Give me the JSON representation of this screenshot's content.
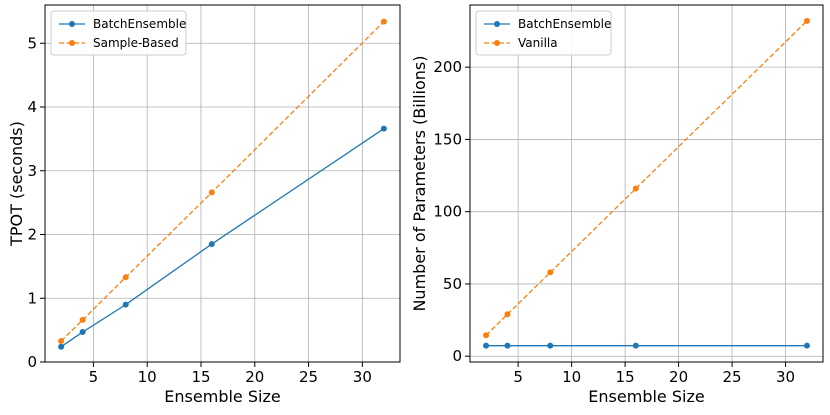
{
  "chart_data": [
    {
      "type": "line",
      "xlabel": "Ensemble Size",
      "ylabel": "TPOT (seconds)",
      "xlim": [
        0.5,
        33.5
      ],
      "ylim": [
        0,
        5.6
      ],
      "x_ticks": [
        5,
        10,
        15,
        20,
        25,
        30
      ],
      "y_ticks": [
        0,
        1,
        2,
        3,
        4,
        5
      ],
      "grid": true,
      "legend_position": "top-left",
      "x": [
        2,
        4,
        8,
        16,
        32
      ],
      "series": [
        {
          "name": "BatchEnsemble",
          "values": [
            0.24,
            0.47,
            0.9,
            1.85,
            3.66
          ],
          "color": "#1f77b4",
          "linestyle": "solid"
        },
        {
          "name": "Sample-Based",
          "values": [
            0.33,
            0.66,
            1.33,
            2.66,
            5.34
          ],
          "color": "#ff7f0e",
          "linestyle": "dashed"
        }
      ]
    },
    {
      "type": "line",
      "xlabel": "Ensemble Size",
      "ylabel": "Number of Parameters (Billions)",
      "xlim": [
        0.5,
        33.5
      ],
      "ylim": [
        -4,
        243
      ],
      "x_ticks": [
        5,
        10,
        15,
        20,
        25,
        30
      ],
      "y_ticks": [
        0,
        50,
        100,
        150,
        200
      ],
      "grid": true,
      "legend_position": "top-left",
      "x": [
        2,
        4,
        8,
        16,
        32
      ],
      "series": [
        {
          "name": "BatchEnsemble",
          "values": [
            7.3,
            7.3,
            7.3,
            7.3,
            7.3
          ],
          "color": "#1f77b4",
          "linestyle": "solid"
        },
        {
          "name": "Vanilla",
          "values": [
            14.5,
            29,
            58,
            116,
            232
          ],
          "color": "#ff7f0e",
          "linestyle": "dashed"
        }
      ]
    }
  ]
}
